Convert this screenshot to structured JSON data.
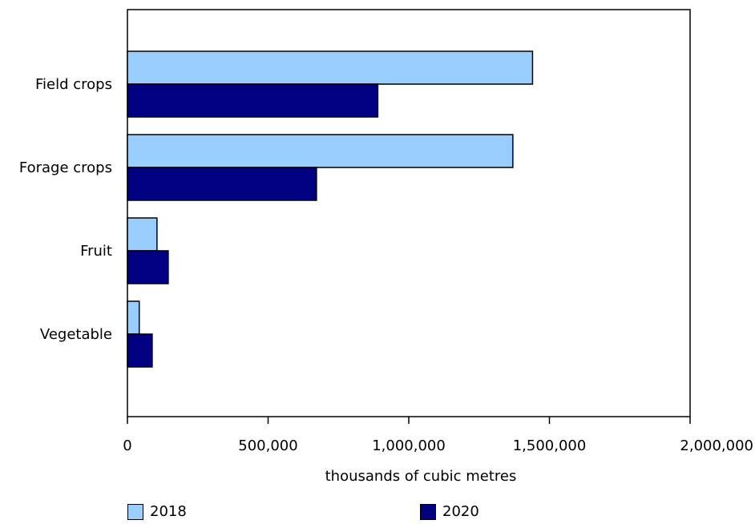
{
  "chart_data": {
    "type": "bar",
    "orientation": "horizontal",
    "categories": [
      "Field crops",
      "Forage crops",
      "Fruit",
      "Vegetable"
    ],
    "series": [
      {
        "name": "2018",
        "color": "#99ccff",
        "values": [
          1440000,
          1370000,
          105000,
          42000
        ]
      },
      {
        "name": "2020",
        "color": "#000080",
        "values": [
          890000,
          672000,
          145000,
          88000
        ]
      }
    ],
    "xlabel": "thousands of cubic metres",
    "xlim": [
      0,
      2000000
    ],
    "xticks": [
      0,
      500000,
      1000000,
      1500000,
      2000000
    ],
    "xtick_labels": [
      "0",
      "500,000",
      "1,000,000",
      "1,500,000",
      "2,000,000"
    ],
    "grid": false,
    "legend_position": "bottom"
  }
}
